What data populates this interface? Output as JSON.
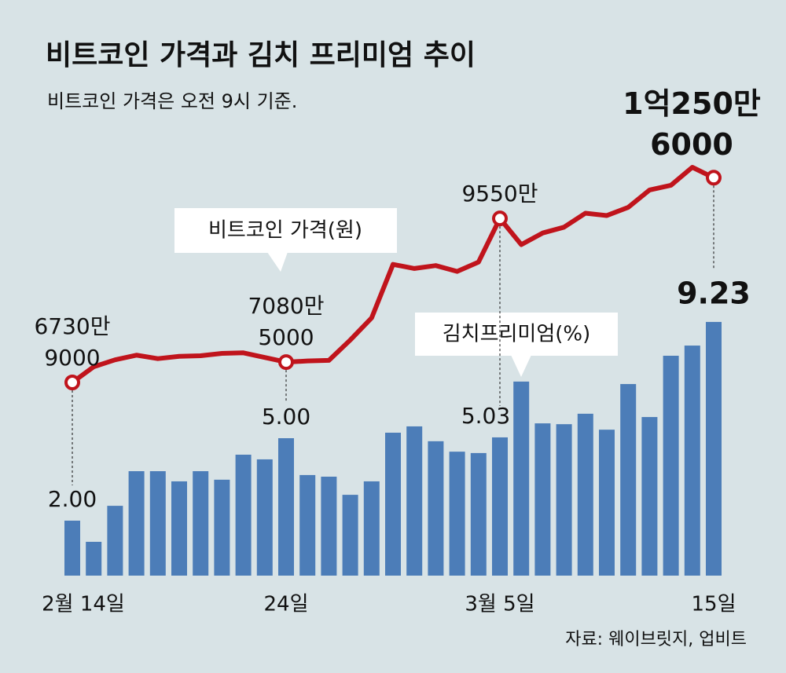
{
  "chart_data": {
    "type": "bar-line",
    "title": "비트코인 가격과 김치 프리미엄 추이",
    "subtitle": "비트코인 가격은 오전 9시 기준.",
    "source": "자료: 웨이브릿지, 업비트",
    "categories": [
      "2월 14일",
      null,
      null,
      null,
      null,
      null,
      null,
      null,
      null,
      null,
      "24일",
      null,
      null,
      null,
      null,
      null,
      null,
      null,
      null,
      null,
      "3월 5일",
      null,
      null,
      null,
      null,
      null,
      null,
      null,
      null,
      null,
      "15일"
    ],
    "series": [
      {
        "name": "김치프리미엄(%)",
        "type": "bar",
        "color": "#4c7db8",
        "values": [
          2.0,
          1.23,
          2.54,
          3.8,
          3.8,
          3.43,
          3.8,
          3.49,
          4.4,
          4.23,
          5.0,
          3.66,
          3.6,
          2.94,
          3.43,
          5.2,
          5.43,
          4.89,
          4.51,
          4.46,
          5.03,
          7.06,
          5.54,
          5.51,
          5.89,
          5.31,
          6.97,
          5.77,
          8.0,
          8.37,
          9.23
        ],
        "value_labels": [
          "2.00",
          null,
          null,
          null,
          null,
          null,
          null,
          null,
          null,
          null,
          "5.00",
          null,
          null,
          null,
          null,
          null,
          null,
          null,
          null,
          null,
          "5.03",
          null,
          null,
          null,
          null,
          null,
          null,
          null,
          null,
          null,
          "9.23"
        ]
      },
      {
        "name": "비트코인 가격(원)",
        "type": "line",
        "axis": "y2",
        "color": "#c0141c",
        "values": [
          67309000,
          70000000,
          71200000,
          72000000,
          71400000,
          71800000,
          71900000,
          72300000,
          72400000,
          71600000,
          70805000,
          71000000,
          71100000,
          74600000,
          78400000,
          87600000,
          86900000,
          87400000,
          86400000,
          88000000,
          95500000,
          91000000,
          93000000,
          94000000,
          96400000,
          96000000,
          97400000,
          100400000,
          101200000,
          104300000,
          102506000
        ],
        "value_labels": [
          [
            "6730만",
            "9000"
          ],
          null,
          null,
          null,
          null,
          null,
          null,
          null,
          null,
          null,
          [
            "7080만",
            "5000"
          ],
          null,
          null,
          null,
          null,
          null,
          null,
          null,
          null,
          null,
          [
            "9550만"
          ],
          null,
          null,
          null,
          null,
          null,
          null,
          null,
          null,
          null,
          [
            "1억250만",
            "6000"
          ]
        ]
      }
    ],
    "ylim": [
      0,
      20
    ],
    "y2lim": [
      34100000,
      128600000
    ]
  }
}
